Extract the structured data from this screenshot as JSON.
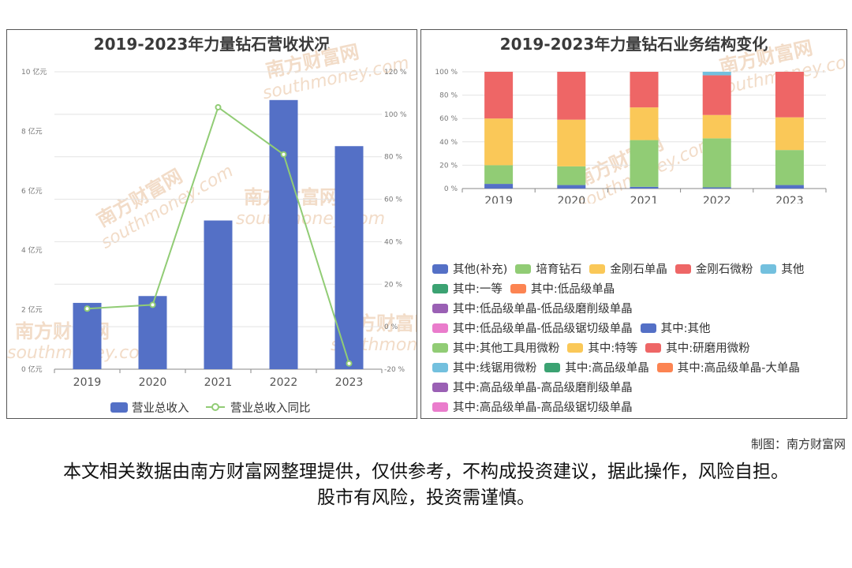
{
  "left_chart": {
    "title": "2019-2023年力量钻石营收状况",
    "y_left_ticks": [
      "0 亿元",
      "2 亿元",
      "4 亿元",
      "6 亿元",
      "8 亿元",
      "10 亿元"
    ],
    "y_right_ticks": [
      "-20 %",
      "0 %",
      "20 %",
      "40 %",
      "60 %",
      "80 %",
      "100 %",
      "120 %"
    ],
    "legend": {
      "bar": "营业总收入",
      "line": "营业总收入同比"
    }
  },
  "right_chart": {
    "title": "2019-2023年力量钻石业务结构变化",
    "y_ticks": [
      "0 %",
      "20 %",
      "40 %",
      "60 %",
      "80 %",
      "100 %"
    ],
    "legend_rows": [
      [
        0,
        1,
        2,
        3,
        4
      ],
      [
        5,
        6
      ],
      [
        7
      ],
      [
        8,
        9
      ],
      [
        10,
        11,
        12
      ],
      [
        13,
        14,
        15
      ],
      [
        16
      ],
      [
        17
      ]
    ]
  },
  "chart_data": [
    {
      "type": "bar",
      "title": "2019-2023年力量钻石营收状况",
      "categories": [
        "2019",
        "2020",
        "2021",
        "2022",
        "2023"
      ],
      "series": [
        {
          "name": "营业总收入",
          "type": "bar",
          "axis": "left",
          "color": "#5470c6",
          "values": [
            2.23,
            2.46,
            5.0,
            9.05,
            7.5
          ]
        },
        {
          "name": "营业总收入同比",
          "type": "line",
          "axis": "right",
          "color": "#91cc75",
          "values": [
            8.5,
            10.3,
            103.3,
            81.1,
            -17.3
          ]
        }
      ],
      "ylim_left": [
        0,
        10
      ],
      "ylim_right": [
        -20,
        120
      ],
      "legend": "bottom",
      "grid": true
    },
    {
      "type": "bar",
      "stacked": true,
      "title": "2019-2023年力量钻石业务结构变化",
      "categories": [
        "2019",
        "2020",
        "2021",
        "2022",
        "2023"
      ],
      "series": [
        {
          "name": "其他(补充)",
          "color": "#5470c6",
          "values": [
            4,
            3,
            1.5,
            1,
            3
          ]
        },
        {
          "name": "培育钻石",
          "color": "#91cc75",
          "values": [
            16,
            16,
            40,
            42,
            30
          ]
        },
        {
          "name": "金刚石单晶",
          "color": "#fac858",
          "values": [
            40,
            40,
            28,
            20,
            28
          ]
        },
        {
          "name": "金刚石微粉",
          "color": "#ee6666",
          "values": [
            40,
            41,
            30.5,
            34,
            39
          ]
        },
        {
          "name": "其他",
          "color": "#73c0de",
          "values": [
            0,
            0,
            0,
            3,
            0
          ]
        },
        {
          "name": "其中:一等",
          "color": "#3ba272",
          "values": [
            0,
            0,
            0,
            0,
            0
          ]
        },
        {
          "name": "其中:低品级单晶",
          "color": "#fc8452",
          "values": [
            0,
            0,
            0,
            0,
            0
          ]
        },
        {
          "name": "其中:低品级单晶-低品级磨削级单晶",
          "color": "#9a60b4",
          "values": [
            0,
            0,
            0,
            0,
            0
          ]
        },
        {
          "name": "其中:低品级单晶-低品级锯切级单晶",
          "color": "#ea7ccc",
          "values": [
            0,
            0,
            0,
            0,
            0
          ]
        },
        {
          "name": "其中:其他",
          "color": "#5470c6",
          "values": [
            0,
            0,
            0,
            0,
            0
          ]
        },
        {
          "name": "其中:其他工具用微粉",
          "color": "#91cc75",
          "values": [
            0,
            0,
            0,
            0,
            0
          ]
        },
        {
          "name": "其中:特等",
          "color": "#fac858",
          "values": [
            0,
            0,
            0,
            0,
            0
          ]
        },
        {
          "name": "其中:研磨用微粉",
          "color": "#ee6666",
          "values": [
            0,
            0,
            0,
            0,
            0
          ]
        },
        {
          "name": "其中:线锯用微粉",
          "color": "#73c0de",
          "values": [
            0,
            0,
            0,
            0,
            0
          ]
        },
        {
          "name": "其中:高品级单晶",
          "color": "#3ba272",
          "values": [
            0,
            0,
            0,
            0,
            0
          ]
        },
        {
          "name": "其中:高品级单晶-大单晶",
          "color": "#fc8452",
          "values": [
            0,
            0,
            0,
            0,
            0
          ]
        },
        {
          "name": "其中:高品级单晶-高品级磨削级单晶",
          "color": "#9a60b4",
          "values": [
            0,
            0,
            0,
            0,
            0
          ]
        },
        {
          "name": "其中:高品级单晶-高品级锯切级单晶",
          "color": "#ea7ccc",
          "values": [
            0,
            0,
            0,
            0,
            0
          ]
        }
      ],
      "ylim": [
        0,
        100
      ],
      "legend": "bottom",
      "grid": true
    }
  ],
  "footer": {
    "credit": "制图：南方财富网",
    "disclaimer": "本文相关数据由南方财富网整理提供，仅供参考，不构成投资建议，据此操作，风险自担。股市有风险，投资需谨慎。"
  },
  "watermark": {
    "cn": "南方财富网",
    "en": "southmoney.com",
    "color": "#f2dcc8"
  }
}
